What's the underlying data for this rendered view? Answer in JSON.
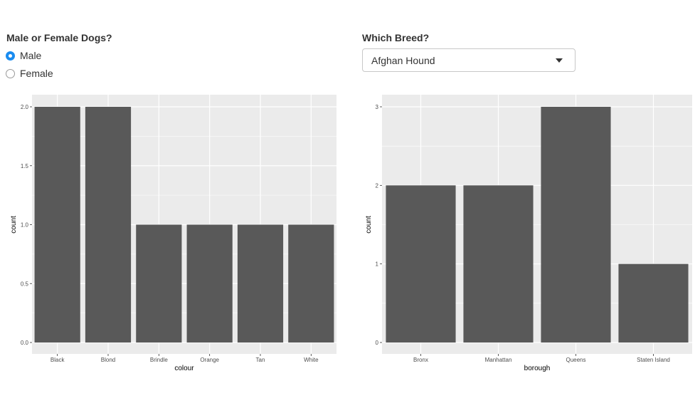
{
  "sex_filter": {
    "label": "Male or Female Dogs?",
    "options": [
      {
        "label": "Male",
        "checked": true
      },
      {
        "label": "Female",
        "checked": false
      }
    ]
  },
  "breed_filter": {
    "label": "Which Breed?",
    "selected": "Afghan Hound",
    "icon": "chevron-down-icon"
  },
  "colors": {
    "panel_bg": "#ebebeb",
    "grid": "#ffffff",
    "bar": "#595959",
    "radio_accent": "#1a8cf0"
  },
  "chart_data": [
    {
      "type": "bar",
      "categories": [
        "Black",
        "Blond",
        "Brindle",
        "Orange",
        "Tan",
        "White"
      ],
      "values": [
        2,
        2,
        1,
        1,
        1,
        1
      ],
      "title": "",
      "xlabel": "colour",
      "ylabel": "count",
      "ylim": [
        0,
        2.0
      ],
      "yticks": [
        "0.0",
        "0.5",
        "1.0",
        "1.5",
        "2.0"
      ],
      "grid": true,
      "legend": "none"
    },
    {
      "type": "bar",
      "categories": [
        "Bronx",
        "Manhattan",
        "Queens",
        "Staten Island"
      ],
      "values": [
        2,
        2,
        3,
        1
      ],
      "title": "",
      "xlabel": "borough",
      "ylabel": "count",
      "ylim": [
        0,
        3
      ],
      "yticks": [
        "0",
        "1",
        "2",
        "3"
      ],
      "grid": true,
      "legend": "none"
    }
  ]
}
